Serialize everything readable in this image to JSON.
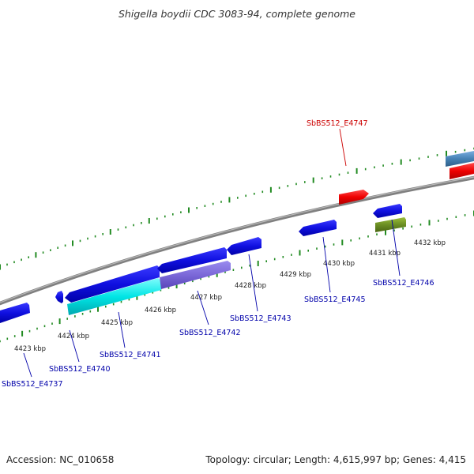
{
  "title": "Shigella boydii CDC 3083-94, complete genome",
  "footer": {
    "accession": "Accession: NC_010658",
    "stats": "Topology: circular; Length: 4,615,997 bp; Genes: 4,415"
  },
  "tick_labels": [
    "4423 kbp",
    "4424 kbp",
    "4425 kbp",
    "4426 kbp",
    "4427 kbp",
    "4428 kbp",
    "4429 kbp",
    "4430 kbp",
    "4431 kbp",
    "4432 kbp"
  ],
  "gene_labels": {
    "g4737": "SbBS512_E4737",
    "g4740": "SbBS512_E4740",
    "g4741": "SbBS512_E4741",
    "g4742": "SbBS512_E4742",
    "g4743": "SbBS512_E4743",
    "g4745": "SbBS512_E4745",
    "g4746": "SbBS512_E4746",
    "g4747": "SbBS512_E4747"
  },
  "colors": {
    "backbone": "#808080",
    "tick": "#228b22",
    "gene_blue": "#1010e0",
    "gene_cyan": "#00e0e0",
    "gene_purple": "#7b68d8",
    "gene_red": "#ee0000",
    "gene_olive": "#6b8e23",
    "gene_steel": "#4682b4",
    "label_blue": "#0000aa",
    "label_red": "#cc0000"
  }
}
